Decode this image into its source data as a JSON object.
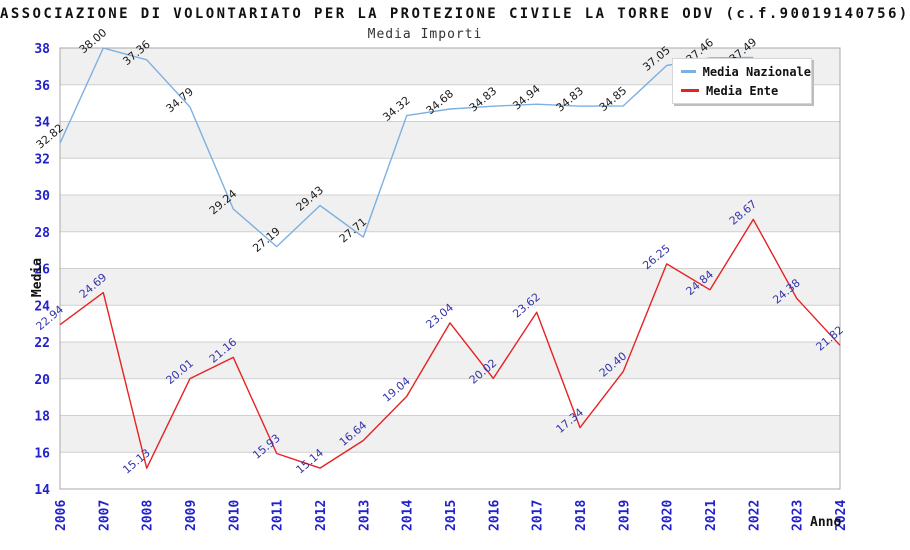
{
  "title": "ASSOCIAZIONE DI VOLONTARIATO PER LA PROTEZIONE CIVILE LA TORRE ODV (c.f.90019140756)",
  "subtitle": "Media Importi",
  "axes": {
    "y_title": "Media",
    "x_title": "Anno",
    "y_min": 14,
    "y_max": 38,
    "y_ticks": [
      14,
      16,
      18,
      20,
      22,
      24,
      26,
      28,
      30,
      32,
      34,
      36,
      38
    ],
    "band_lower_edges": [
      16,
      20,
      24,
      28,
      32,
      36
    ],
    "x_ticks": [
      "2006",
      "2007",
      "2008",
      "2009",
      "2010",
      "2011",
      "2012",
      "2013",
      "2014",
      "2015",
      "2016",
      "2017",
      "2018",
      "2019",
      "2020",
      "2021",
      "2022",
      "2023",
      "2024"
    ]
  },
  "legend": {
    "items": [
      {
        "label": "Media Nazionale",
        "color": "#7cb0e2"
      },
      {
        "label": "Media Ente",
        "color": "#e62222"
      }
    ]
  },
  "colors": {
    "band": "#f0f0f0",
    "gridline": "#d0d0d0",
    "plot_border": "#a8a8a8",
    "axis_tick_text": "#2222cc",
    "title_text": "#111111",
    "subtitle_text": "#333333"
  },
  "chart_data": {
    "type": "line",
    "title": "ASSOCIAZIONE DI VOLONTARIATO PER LA PROTEZIONE CIVILE LA TORRE ODV (c.f.90019140756)",
    "subtitle": "Media Importi",
    "xlabel": "Anno",
    "ylabel": "Media",
    "ylim": [
      14,
      38
    ],
    "grid": true,
    "legend_position": "top-right",
    "x": [
      2006,
      2007,
      2008,
      2009,
      2010,
      2011,
      2012,
      2013,
      2014,
      2015,
      2016,
      2017,
      2018,
      2019,
      2020,
      2021,
      2022,
      2023,
      2024
    ],
    "series": [
      {
        "name": "Media Nazionale",
        "color": "#7cb0e2",
        "label_color": "#1a1a1a",
        "values": [
          32.82,
          38.0,
          37.36,
          34.79,
          29.24,
          27.19,
          29.43,
          27.71,
          34.32,
          34.68,
          34.83,
          34.94,
          34.83,
          34.85,
          37.05,
          37.46,
          37.49,
          null,
          null
        ]
      },
      {
        "name": "Media Ente",
        "color": "#e62222",
        "label_color": "#3333aa",
        "values": [
          22.94,
          24.69,
          15.13,
          20.01,
          21.16,
          15.93,
          15.14,
          16.64,
          19.04,
          23.04,
          20.02,
          23.62,
          17.34,
          20.4,
          26.25,
          24.84,
          28.67,
          24.38,
          21.82
        ]
      }
    ]
  }
}
